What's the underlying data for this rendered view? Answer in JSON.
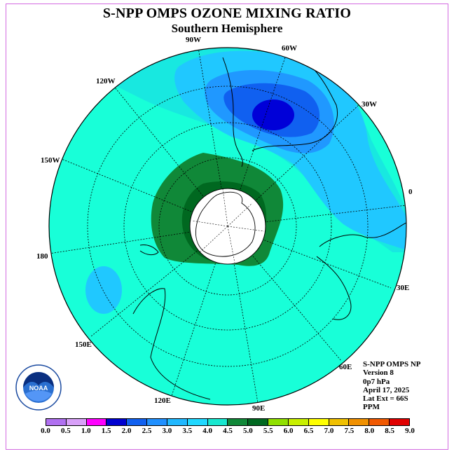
{
  "title": "S-NPP OMPS OZONE MIXING RATIO",
  "subtitle": "Southern Hemisphere",
  "longitude_labels": [
    "90W",
    "60W",
    "30W",
    "0",
    "30E",
    "60E",
    "90E",
    "120E",
    "150E",
    "180",
    "150W",
    "120W"
  ],
  "info": [
    "S-NPP OMPS NP",
    "Version 8",
    "0p7 hPa",
    "April 17, 2025",
    "Lat Ext = 66S",
    "PPM"
  ],
  "colorbar": {
    "ticks": [
      "0.0",
      "0.5",
      "1.0",
      "1.5",
      "2.0",
      "2.5",
      "3.0",
      "3.5",
      "4.0",
      "4.5",
      "5.0",
      "5.5",
      "6.0",
      "6.5",
      "7.0",
      "7.5",
      "8.0",
      "8.5",
      "9.0"
    ],
    "colors": [
      "#b070f0",
      "#d8a0f8",
      "#ff00ff",
      "#0000d0",
      "#1060f0",
      "#2090ff",
      "#20b8ff",
      "#20d8ff",
      "#18e8d0",
      "#108838",
      "#006820",
      "#90e000",
      "#c8f000",
      "#ffff00",
      "#f0c000",
      "#f09000",
      "#f05800",
      "#e00000",
      "#806040"
    ]
  },
  "logo": {
    "text": "NOAA",
    "ring_text": "NATIONAL OCEANIC AND ATMOSPHERIC ADMINISTRATION · U.S. DEPARTMENT OF COMMERCE"
  },
  "map_fields": {
    "background_color": "#18ffd8",
    "outer_color": "#18e8c8"
  }
}
